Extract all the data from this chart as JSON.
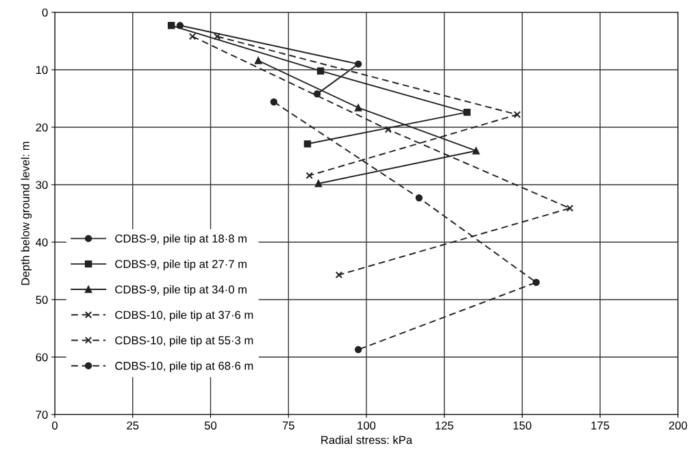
{
  "chart_data": {
    "type": "line",
    "xlabel": "Radial stress: kPa",
    "ylabel": "Depth below ground level: m",
    "xlim": [
      0,
      200
    ],
    "xticks": [
      0,
      25,
      50,
      75,
      100,
      125,
      150,
      175,
      200
    ],
    "ylim": [
      70,
      0
    ],
    "yticks": [
      0,
      10,
      20,
      30,
      40,
      50,
      60,
      70
    ],
    "grid": true,
    "legend": "bottom left",
    "series": [
      {
        "name": "CDBS-9, pile tip at 18·8 m",
        "color": "#222222",
        "marker": "circle",
        "line_style": "solid",
        "x": [
          40.2,
          97.4,
          84.2
        ],
        "values": [
          2.3,
          9.0,
          14.2
        ]
      },
      {
        "name": "CDBS-9, pile tip at 27·7 m",
        "color": "#222222",
        "marker": "square",
        "line_style": "solid",
        "x": [
          37.4,
          85.3,
          132.3,
          81.1
        ],
        "values": [
          2.3,
          10.2,
          17.4,
          22.9
        ]
      },
      {
        "name": "CDBS-9, pile tip at 34·0 m",
        "color": "#222222",
        "marker": "triangle",
        "line_style": "solid",
        "x": [
          65.3,
          97.4,
          135.2,
          84.6
        ],
        "values": [
          8.4,
          16.6,
          24.1,
          29.8
        ]
      },
      {
        "name": "CDBS-10, pile tip at 37·6 m",
        "color": "#222222",
        "marker": "cross",
        "line_style": "dashed",
        "x": [
          52.1,
          148.4,
          81.7
        ],
        "values": [
          4.2,
          17.8,
          28.4
        ]
      },
      {
        "name": "CDBS-10, pile tip at 55·3 m",
        "color": "#222222",
        "marker": "cross",
        "line_style": "dashed",
        "x": [
          44.2,
          107.0,
          165.3,
          91.2
        ],
        "values": [
          4.2,
          20.4,
          34.1,
          45.7
        ]
      },
      {
        "name": "CDBS-10, pile tip at 68·6 m",
        "color": "#222222",
        "marker": "circle",
        "line_style": "dashed",
        "x": [
          70.3,
          116.9,
          154.5,
          97.4
        ],
        "values": [
          15.6,
          32.3,
          47.0,
          58.7
        ]
      }
    ]
  }
}
